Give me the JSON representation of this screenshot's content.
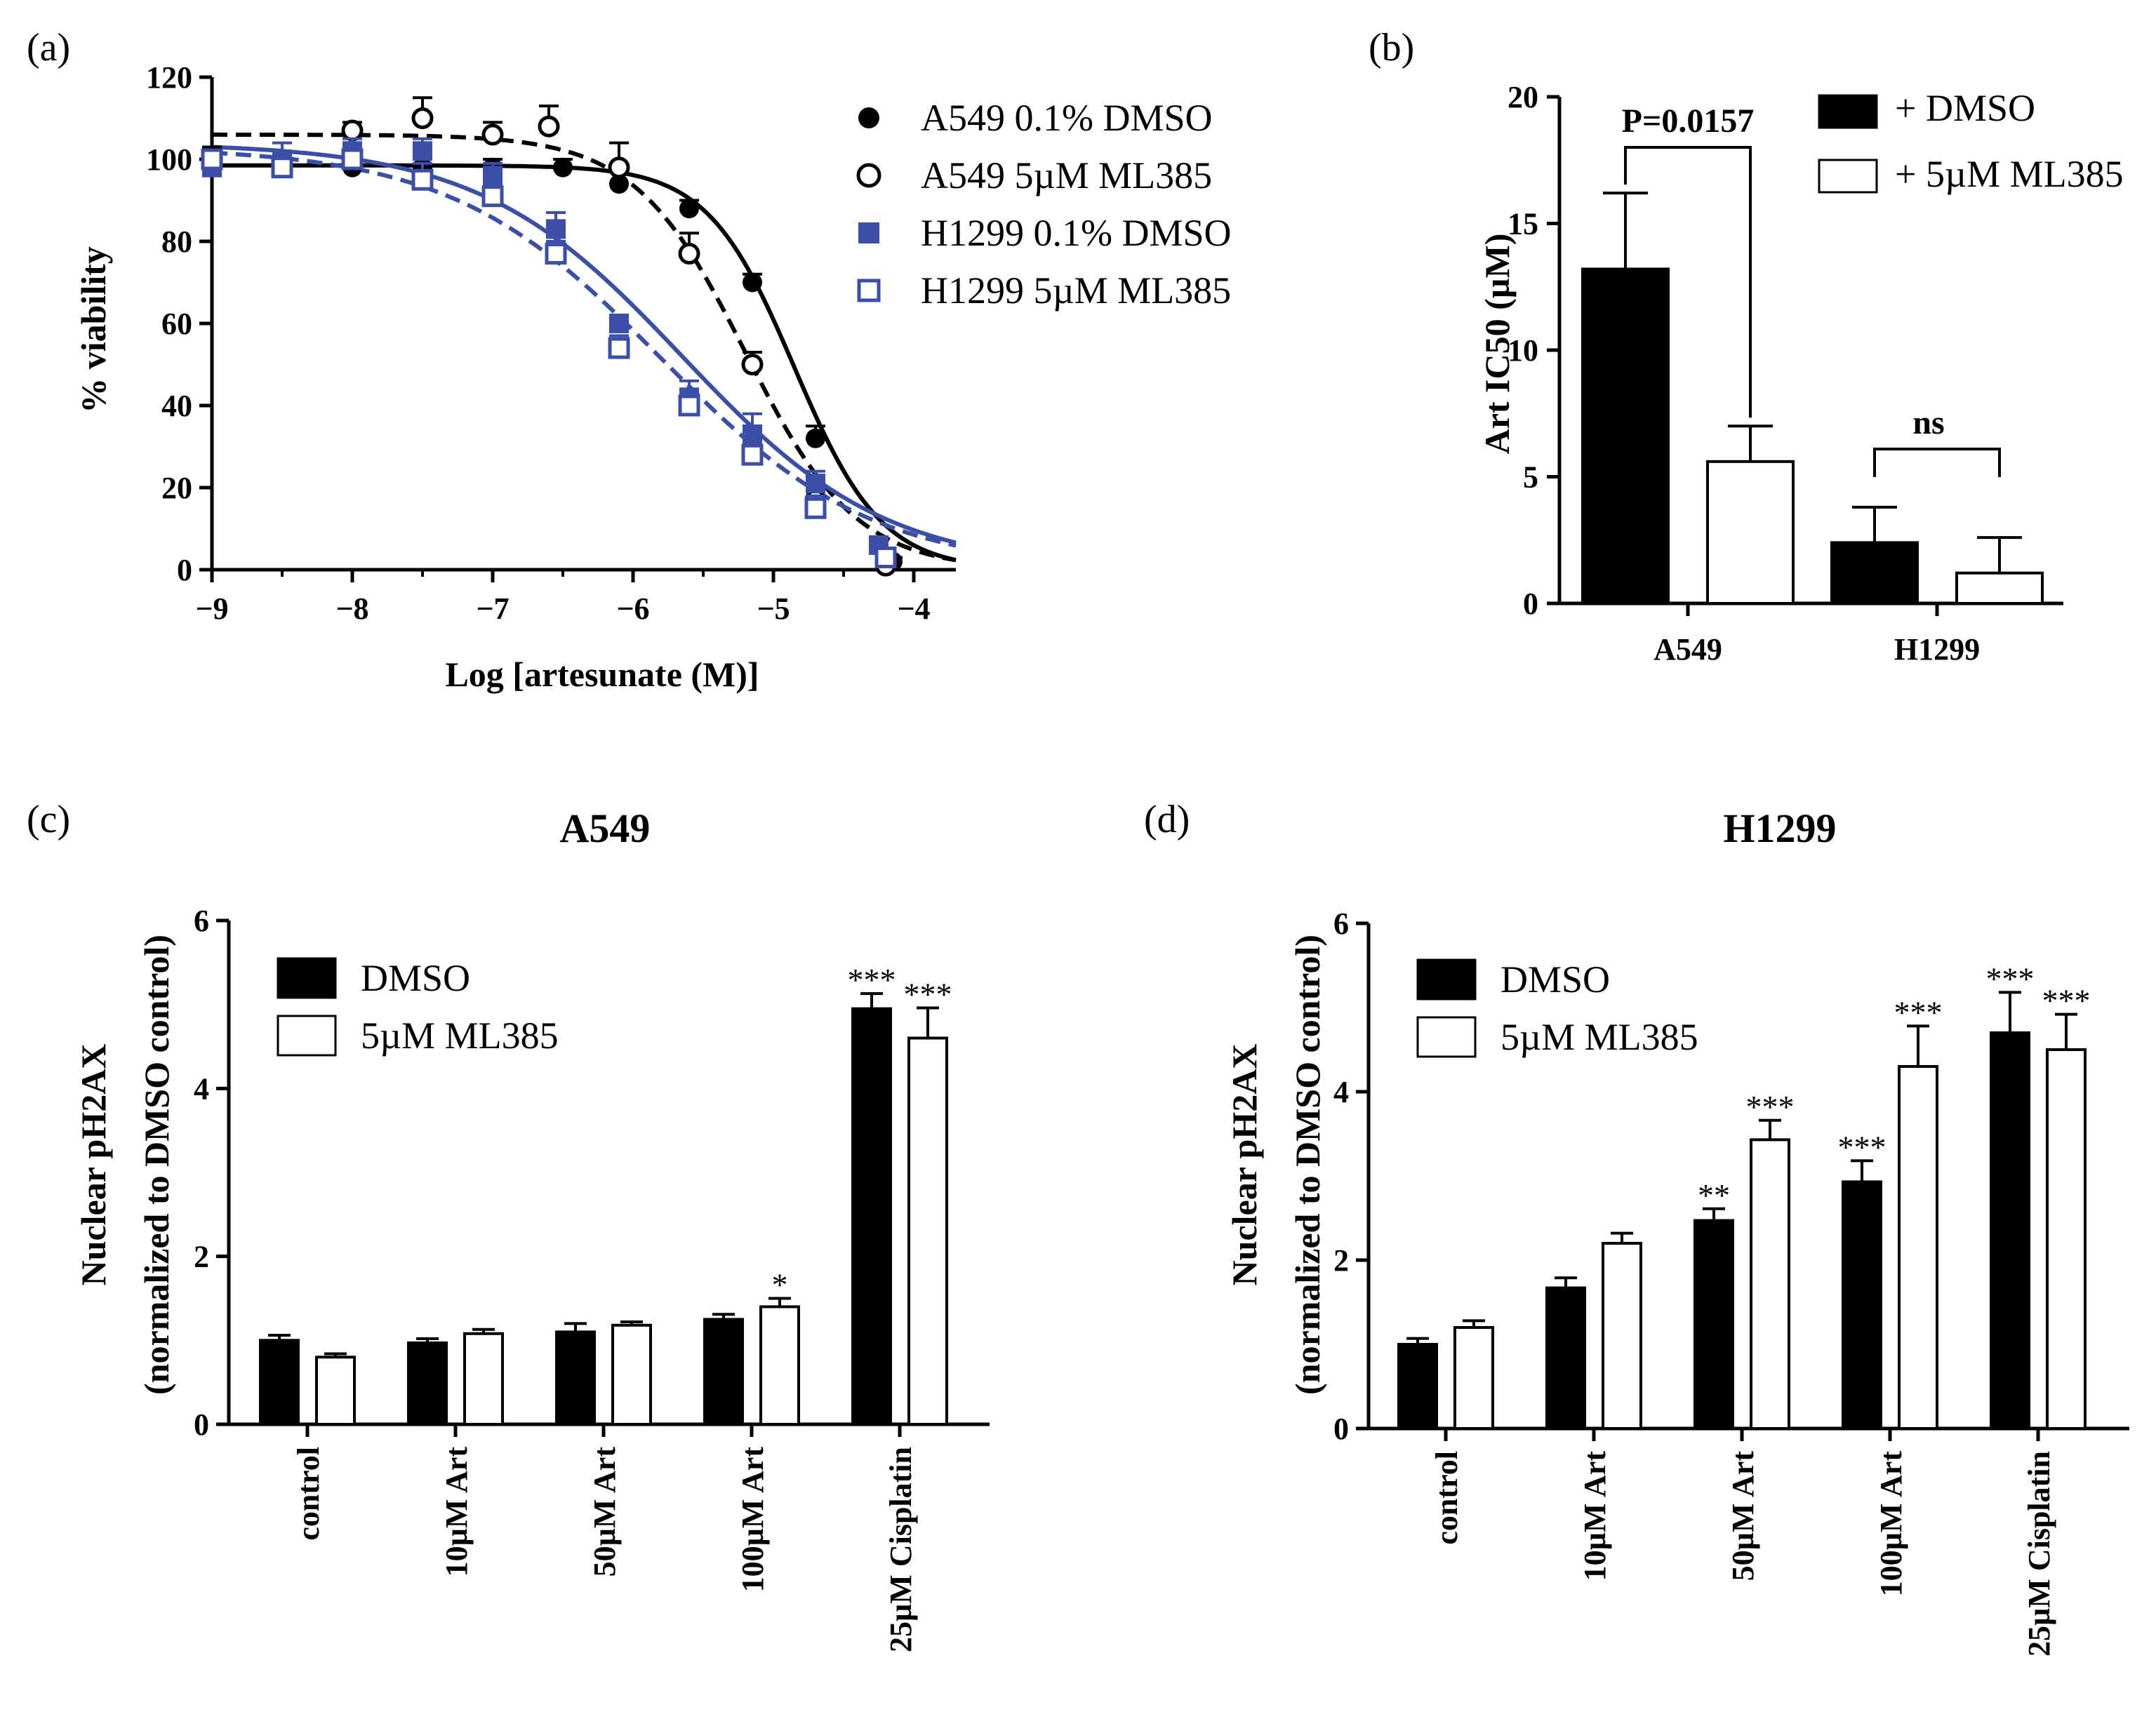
{
  "chart_data": [
    {
      "panel_label": "(a)",
      "type": "line",
      "xlabel": "Log [artesunate (M)]",
      "ylabel": "% viability",
      "xlim": [
        -9,
        -3.7
      ],
      "ylim": [
        0,
        120
      ],
      "xticks": [
        "-9",
        "-8",
        "-7",
        "-6",
        "-5",
        "-4"
      ],
      "yticks": [
        "0",
        "20",
        "40",
        "60",
        "80",
        "100",
        "120"
      ],
      "legend": [
        "A549 0.1% DMSO",
        "A549 5µM ML385",
        "H1299 0.1% DMSO",
        "H1299 5µM ML385"
      ],
      "series": [
        {
          "name": "A549 0.1% DMSO",
          "color": "#000000",
          "marker": "filled-circle",
          "line": "solid",
          "fit": {
            "top": 98.5,
            "bottom": 0,
            "logIC50": -4.85,
            "hill": 1.4
          },
          "x": [
            -9,
            -8.5,
            -8,
            -7.5,
            -7,
            -6.5,
            -6.1,
            -5.6,
            -5.15,
            -4.7,
            -4.15
          ],
          "y": [
            98,
            98,
            98,
            98,
            98,
            98,
            94,
            88,
            70,
            32,
            2
          ],
          "err": [
            2,
            3,
            3,
            2,
            2,
            2,
            3,
            2,
            2,
            3,
            1
          ]
        },
        {
          "name": "A549 5µM ML385",
          "color": "#000000",
          "marker": "open-circle",
          "line": "dashed",
          "fit": {
            "top": 106,
            "bottom": 0,
            "logIC50": -5.2,
            "hill": 1.1
          },
          "x": [
            -9,
            -8,
            -7.5,
            -7,
            -6.6,
            -6.1,
            -5.6,
            -5.15,
            -4.7,
            -4.2
          ],
          "y": [
            100,
            107,
            110,
            106,
            108,
            98,
            77,
            50,
            17,
            1
          ],
          "err": [
            3,
            2,
            5,
            3,
            5,
            6,
            5,
            3,
            3,
            1
          ]
        },
        {
          "name": "H1299 0.1% DMSO",
          "color": "#3b4fa8",
          "marker": "filled-square",
          "line": "solid",
          "fit": {
            "top": 104,
            "bottom": 0,
            "logIC50": -5.65,
            "hill": 0.6
          },
          "x": [
            -9,
            -8.5,
            -8,
            -7.5,
            -7,
            -6.55,
            -6.1,
            -5.6,
            -5.15,
            -4.7,
            -4.25
          ],
          "y": [
            98,
            100,
            102,
            102,
            96,
            83,
            60,
            42,
            33,
            21,
            6
          ],
          "err": [
            2,
            4,
            3,
            3,
            3,
            4,
            2,
            4,
            5,
            3,
            2
          ]
        },
        {
          "name": "H1299 5µM ML385",
          "color": "#3b4fa8",
          "marker": "open-square",
          "line": "dashed",
          "fit": {
            "top": 103,
            "bottom": 0,
            "logIC50": -5.8,
            "hill": 0.58
          },
          "x": [
            -9,
            -8.5,
            -8,
            -7.5,
            -7,
            -6.55,
            -6.1,
            -5.6,
            -5.15,
            -4.7,
            -4.2
          ],
          "y": [
            100,
            98,
            100,
            95,
            91,
            77,
            54,
            40,
            28,
            15,
            3
          ],
          "err": [
            2,
            3,
            3,
            4,
            3,
            3,
            3,
            3,
            4,
            3,
            2
          ]
        }
      ]
    },
    {
      "panel_label": "(b)",
      "type": "bar",
      "ylabel": "Art IC50 (µM)",
      "ylim": [
        0,
        20
      ],
      "yticks": [
        "0",
        "5",
        "10",
        "15",
        "20"
      ],
      "categories": [
        "A549",
        "H1299"
      ],
      "legend": [
        "+ DMSO",
        "+ 5µM ML385"
      ],
      "series": [
        {
          "name": "+ DMSO",
          "fill": "#000000",
          "values": [
            13.2,
            2.4
          ],
          "err": [
            3.0,
            1.4
          ]
        },
        {
          "name": "+ 5µM ML385",
          "fill": "#ffffff",
          "values": [
            5.6,
            1.2
          ],
          "err": [
            1.4,
            1.4
          ]
        }
      ],
      "annotations": [
        "P=0.0157",
        "ns"
      ]
    },
    {
      "panel_label": "(c)",
      "type": "bar",
      "title": "A549",
      "ylabel_line1": "Nuclear pH2AX",
      "ylabel_line2": "(normalized to DMSO control)",
      "ylim": [
        0,
        6
      ],
      "yticks": [
        "0",
        "2",
        "4",
        "6"
      ],
      "categories": [
        "control",
        "10µM Art",
        "50µM Art",
        "100µM Art",
        "25µM Cisplatin"
      ],
      "legend": [
        "DMSO",
        "5µM ML385"
      ],
      "series": [
        {
          "name": "DMSO",
          "fill": "#000000",
          "values": [
            1.0,
            0.97,
            1.1,
            1.25,
            4.95
          ],
          "err": [
            0.06,
            0.05,
            0.1,
            0.06,
            0.18
          ],
          "sig": [
            "",
            "",
            "",
            "",
            "***"
          ]
        },
        {
          "name": "5µM ML385",
          "fill": "#ffffff",
          "values": [
            0.8,
            1.08,
            1.18,
            1.4,
            4.6
          ],
          "err": [
            0.04,
            0.05,
            0.04,
            0.1,
            0.36
          ],
          "sig": [
            "",
            "",
            "",
            "*",
            "***"
          ]
        }
      ]
    },
    {
      "panel_label": "(d)",
      "type": "bar",
      "title": "H1299",
      "ylabel_line1": "Nuclear pH2AX",
      "ylabel_line2": "(normalized to DMSO control)",
      "ylim": [
        0,
        6
      ],
      "yticks": [
        "0",
        "2",
        "4",
        "6"
      ],
      "categories": [
        "control",
        "10µM Art",
        "50µM Art",
        "100µM Art",
        "25µM Cisplatin"
      ],
      "legend": [
        "DMSO",
        "5µM ML385"
      ],
      "series": [
        {
          "name": "DMSO",
          "fill": "#000000",
          "values": [
            1.0,
            1.67,
            2.47,
            2.93,
            4.7
          ],
          "err": [
            0.07,
            0.12,
            0.14,
            0.25,
            0.48
          ],
          "sig": [
            "",
            "",
            "**",
            "***",
            "***"
          ]
        },
        {
          "name": "5µM ML385",
          "fill": "#ffffff",
          "values": [
            1.2,
            2.2,
            3.43,
            4.3,
            4.5
          ],
          "err": [
            0.08,
            0.12,
            0.23,
            0.48,
            0.42
          ],
          "sig": [
            "",
            "",
            "***",
            "***",
            "***"
          ]
        }
      ]
    }
  ]
}
